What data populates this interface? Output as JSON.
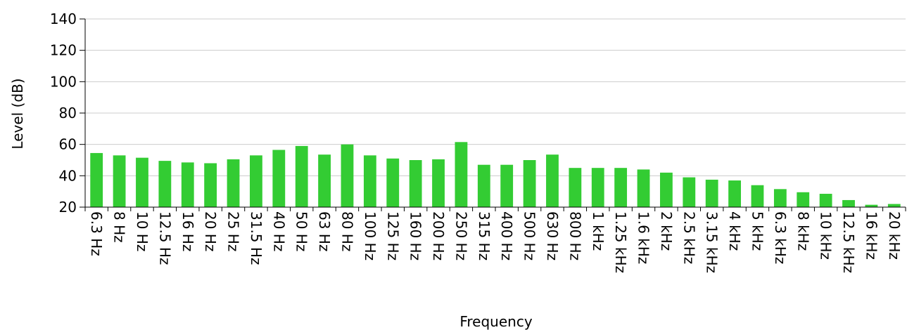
{
  "chart_data": {
    "type": "bar",
    "title": "",
    "xlabel": "Frequency",
    "ylabel": "Level (dB)",
    "ylim": [
      20,
      140
    ],
    "yticks": [
      20,
      40,
      60,
      80,
      100,
      120,
      140
    ],
    "grid": "horizontal",
    "legend": "none",
    "bar_color": "#33cc33",
    "categories": [
      "6.3 Hz",
      "8 Hz",
      "10 Hz",
      "12.5 Hz",
      "16 Hz",
      "20 Hz",
      "25 Hz",
      "31.5 Hz",
      "40 Hz",
      "50 Hz",
      "63 Hz",
      "80 Hz",
      "100 Hz",
      "125 Hz",
      "160 Hz",
      "200 Hz",
      "250 Hz",
      "315 Hz",
      "400 Hz",
      "500 Hz",
      "630 Hz",
      "800 Hz",
      "1 kHz",
      "1.25 kHz",
      "1.6 kHz",
      "2 kHz",
      "2.5 kHz",
      "3.15 kHz",
      "4 kHz",
      "5 kHz",
      "6.3 kHz",
      "8 kHz",
      "10 kHz",
      "12.5 kHz",
      "16 kHz",
      "20 kHz"
    ],
    "values": [
      54.5,
      53,
      51.5,
      49.5,
      48.5,
      48,
      50.5,
      53,
      56.5,
      59,
      53.5,
      60,
      53,
      51,
      50,
      50.5,
      61.5,
      47,
      47,
      50,
      53.5,
      45,
      45,
      45,
      44,
      42,
      39,
      37.5,
      37,
      34,
      31.5,
      29.5,
      28.5,
      24.5,
      21.5,
      22
    ]
  }
}
